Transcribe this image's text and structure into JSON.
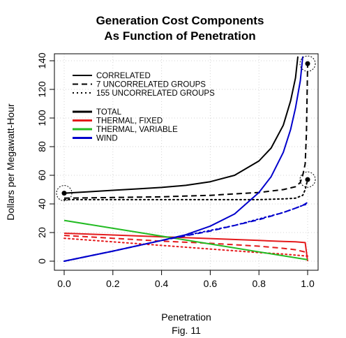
{
  "chart_data": {
    "type": "line",
    "title": [
      "Generation Cost Components",
      "As Function of Penetration"
    ],
    "xlabel": "Penetration",
    "caption": "Fig. 11",
    "ylabel": "Dollars per Megawatt-Hour",
    "xlim": [
      0,
      1
    ],
    "ylim": [
      0,
      140
    ],
    "xticks": [
      "0.0",
      "0.2",
      "0.4",
      "0.6",
      "0.8",
      "1.0"
    ],
    "yticks": [
      "0",
      "20",
      "40",
      "60",
      "80",
      "100",
      "120",
      "140"
    ],
    "grid": true,
    "legend_position": "top-left",
    "legend_linestyles": [
      {
        "label": "CORRELATED",
        "dash": "solid"
      },
      {
        "label": "7 UNCORRELATED GROUPS",
        "dash": "dashed"
      },
      {
        "label": "155 UNCORRELATED GROUPS",
        "dash": "dotted"
      }
    ],
    "legend_components": [
      {
        "label": "TOTAL",
        "color": "#000000"
      },
      {
        "label": "THERMAL, FIXED",
        "color": "#e41a1c"
      },
      {
        "label": "THERMAL, VARIABLE",
        "color": "#22bb22"
      },
      {
        "label": "WIND",
        "color": "#0000cc"
      }
    ],
    "series": [
      {
        "component": "TOTAL",
        "dash": "solid",
        "color": "#000000",
        "x": [
          0,
          0.1,
          0.2,
          0.3,
          0.4,
          0.5,
          0.6,
          0.7,
          0.8,
          0.85,
          0.9,
          0.93,
          0.95,
          0.96
        ],
        "y": [
          47.5,
          48.5,
          49.5,
          50.5,
          51.5,
          53,
          55.5,
          60,
          70,
          79,
          95,
          112,
          128,
          143
        ]
      },
      {
        "component": "TOTAL",
        "dash": "dashed",
        "color": "#000000",
        "x": [
          0,
          0.2,
          0.4,
          0.6,
          0.8,
          0.9,
          0.95,
          0.97,
          0.98,
          0.99,
          0.995,
          1.0
        ],
        "y": [
          44,
          44.5,
          45,
          46,
          48,
          50,
          52,
          55,
          60,
          68,
          90,
          138
        ]
      },
      {
        "component": "TOTAL",
        "dash": "dotted",
        "color": "#000000",
        "x": [
          0,
          0.2,
          0.4,
          0.6,
          0.8,
          0.9,
          0.95,
          0.98,
          0.99,
          1.0
        ],
        "y": [
          43,
          43,
          43,
          43,
          43,
          43.5,
          44,
          46,
          50,
          57
        ]
      },
      {
        "component": "THERMAL, FIXED",
        "dash": "solid",
        "color": "#e41a1c",
        "x": [
          0,
          0.2,
          0.4,
          0.6,
          0.8,
          0.9,
          0.95,
          0.99,
          1.0
        ],
        "y": [
          19.5,
          18.3,
          17,
          15.8,
          14.5,
          13.8,
          13.5,
          13,
          0
        ]
      },
      {
        "component": "THERMAL, FIXED",
        "dash": "dashed",
        "color": "#e41a1c",
        "x": [
          0,
          0.2,
          0.4,
          0.6,
          0.8,
          0.9,
          0.95,
          1.0
        ],
        "y": [
          18,
          16,
          14,
          12.5,
          10.5,
          9,
          8,
          6
        ]
      },
      {
        "component": "THERMAL, FIXED",
        "dash": "dotted",
        "color": "#e41a1c",
        "x": [
          0,
          0.2,
          0.4,
          0.6,
          0.8,
          0.9,
          1.0
        ],
        "y": [
          16,
          13.5,
          11,
          8.5,
          6,
          5,
          3.5
        ]
      },
      {
        "component": "THERMAL, VARIABLE",
        "dash": "solid",
        "color": "#22bb22",
        "x": [
          0,
          0.2,
          0.4,
          0.6,
          0.8,
          1.0
        ],
        "y": [
          28.5,
          23,
          17.5,
          12,
          6.5,
          1
        ]
      },
      {
        "component": "WIND",
        "dash": "solid",
        "color": "#0000cc",
        "x": [
          0,
          0.2,
          0.4,
          0.5,
          0.6,
          0.7,
          0.8,
          0.85,
          0.9,
          0.93,
          0.95,
          0.97,
          0.98
        ],
        "y": [
          0,
          7,
          14.5,
          18.5,
          24.5,
          33,
          48,
          59,
          76,
          92,
          107,
          126,
          143
        ]
      },
      {
        "component": "WIND",
        "dash": "dashed",
        "color": "#0000cc",
        "x": [
          0,
          0.2,
          0.4,
          0.6,
          0.7,
          0.8,
          0.9,
          0.95,
          0.98,
          1.0
        ],
        "y": [
          0,
          7,
          14.5,
          21,
          25,
          29,
          34,
          37,
          39,
          41
        ]
      },
      {
        "component": "WIND",
        "dash": "dotted",
        "color": "#0000cc",
        "x": [
          0,
          0.2,
          0.4,
          0.6,
          0.7,
          0.8,
          0.9,
          0.95,
          0.98,
          1.0
        ],
        "y": [
          0,
          7,
          14.5,
          21.5,
          25,
          29.5,
          34,
          37,
          39,
          40
        ]
      }
    ],
    "markers": [
      {
        "x": 0,
        "y": 47.5
      },
      {
        "x": 1.0,
        "y": 138
      },
      {
        "x": 1.0,
        "y": 57
      }
    ]
  }
}
